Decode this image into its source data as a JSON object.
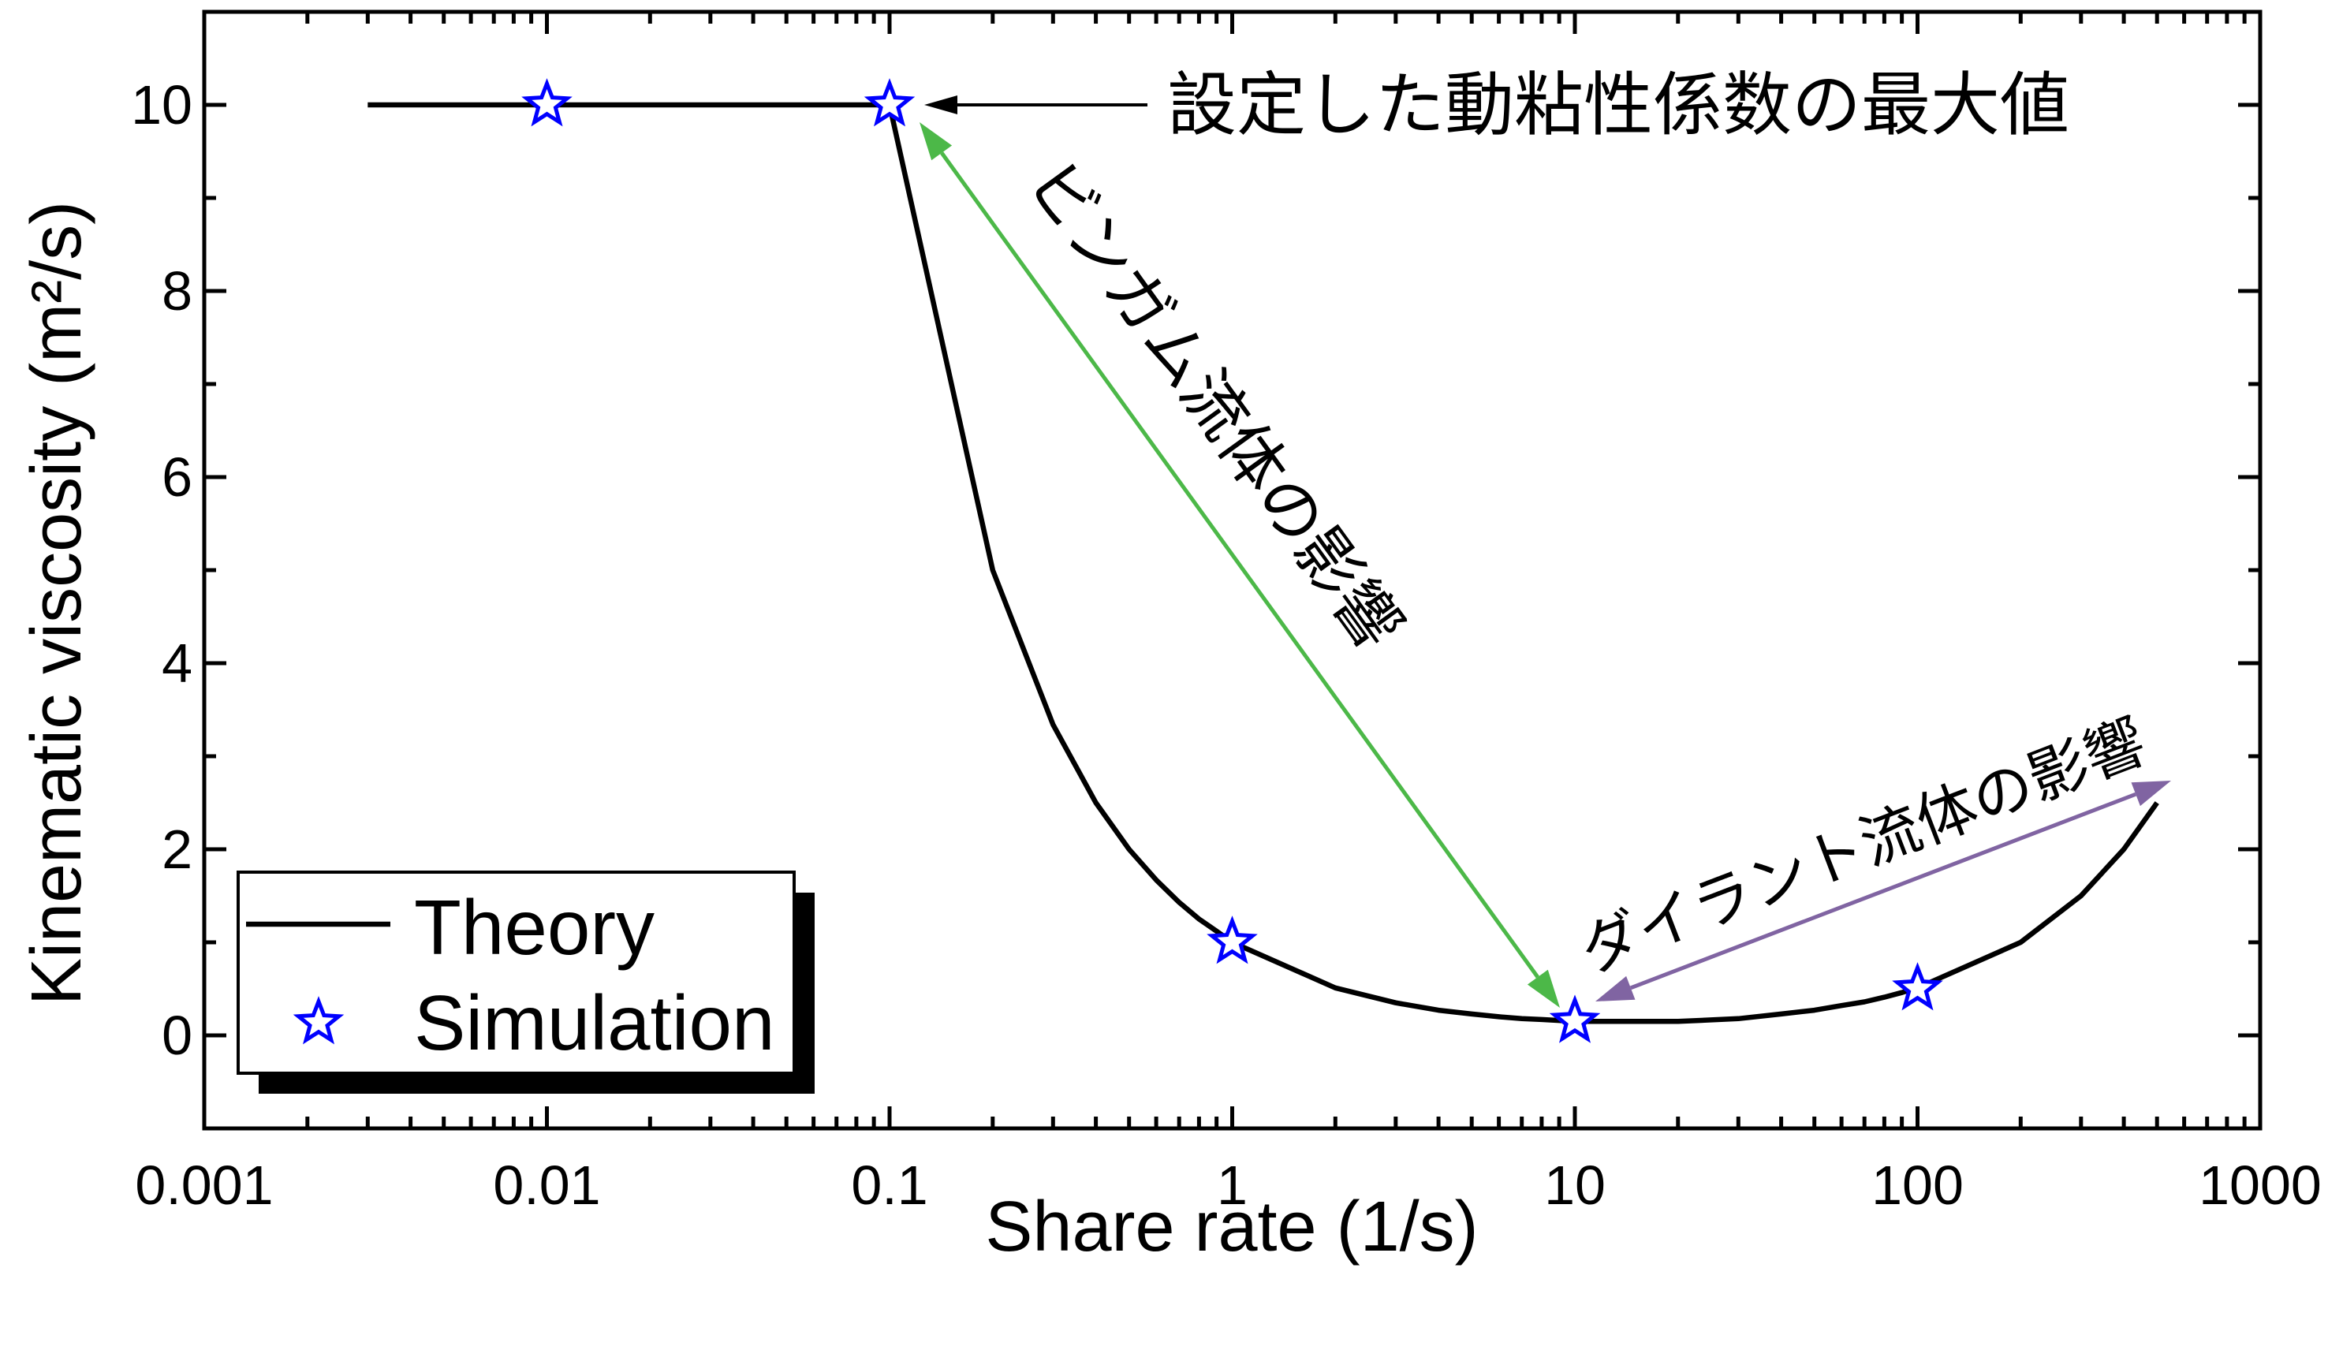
{
  "chart_data": {
    "type": "line",
    "xlabel": "Share rate (1/s)",
    "ylabel": "Kinematic viscosity (m²/s)",
    "xscale": "log",
    "xlim": [
      0.001,
      1000
    ],
    "ylim": [
      -1,
      11
    ],
    "x_ticks": [
      "0.001",
      "0.01",
      "0.1",
      "1",
      "10",
      "100",
      "1000"
    ],
    "y_ticks": [
      "0",
      "2",
      "4",
      "6",
      "8",
      "10"
    ],
    "grid": false,
    "legend": {
      "position": "bottom-left"
    },
    "series": [
      {
        "name": "Theory",
        "type": "line",
        "color": "#000000",
        "x": [
          0.003,
          0.1,
          0.2,
          0.3,
          0.4,
          0.5,
          0.6,
          0.7,
          0.8,
          0.9,
          1,
          2,
          3,
          4,
          5,
          6,
          7,
          8,
          9,
          10,
          20,
          30,
          40,
          50,
          60,
          70,
          80,
          90,
          100,
          200,
          300,
          400,
          500
        ],
        "y": [
          10,
          10,
          5.0,
          3.34,
          2.5,
          2.0,
          1.67,
          1.43,
          1.25,
          1.12,
          1.0,
          0.51,
          0.35,
          0.27,
          0.23,
          0.2,
          0.18,
          0.17,
          0.16,
          0.15,
          0.15,
          0.18,
          0.23,
          0.27,
          0.32,
          0.36,
          0.41,
          0.46,
          0.51,
          1.0,
          1.5,
          2.0,
          2.5
        ]
      },
      {
        "name": "Simulation",
        "type": "scatter",
        "marker": "star",
        "color": "#0000ff",
        "x": [
          0.01,
          0.1,
          1,
          10,
          100
        ],
        "y": [
          10,
          10,
          1.0,
          0.15,
          0.5
        ]
      }
    ],
    "annotations": [
      {
        "text": "設定した動粘性係数の最大値",
        "arrow_color": "#000000"
      },
      {
        "text": "ビンガム流体の影響",
        "arrow_color": "#4cb848"
      },
      {
        "text": "ダイラント流体の影響",
        "arrow_color": "#8064a2"
      }
    ]
  }
}
